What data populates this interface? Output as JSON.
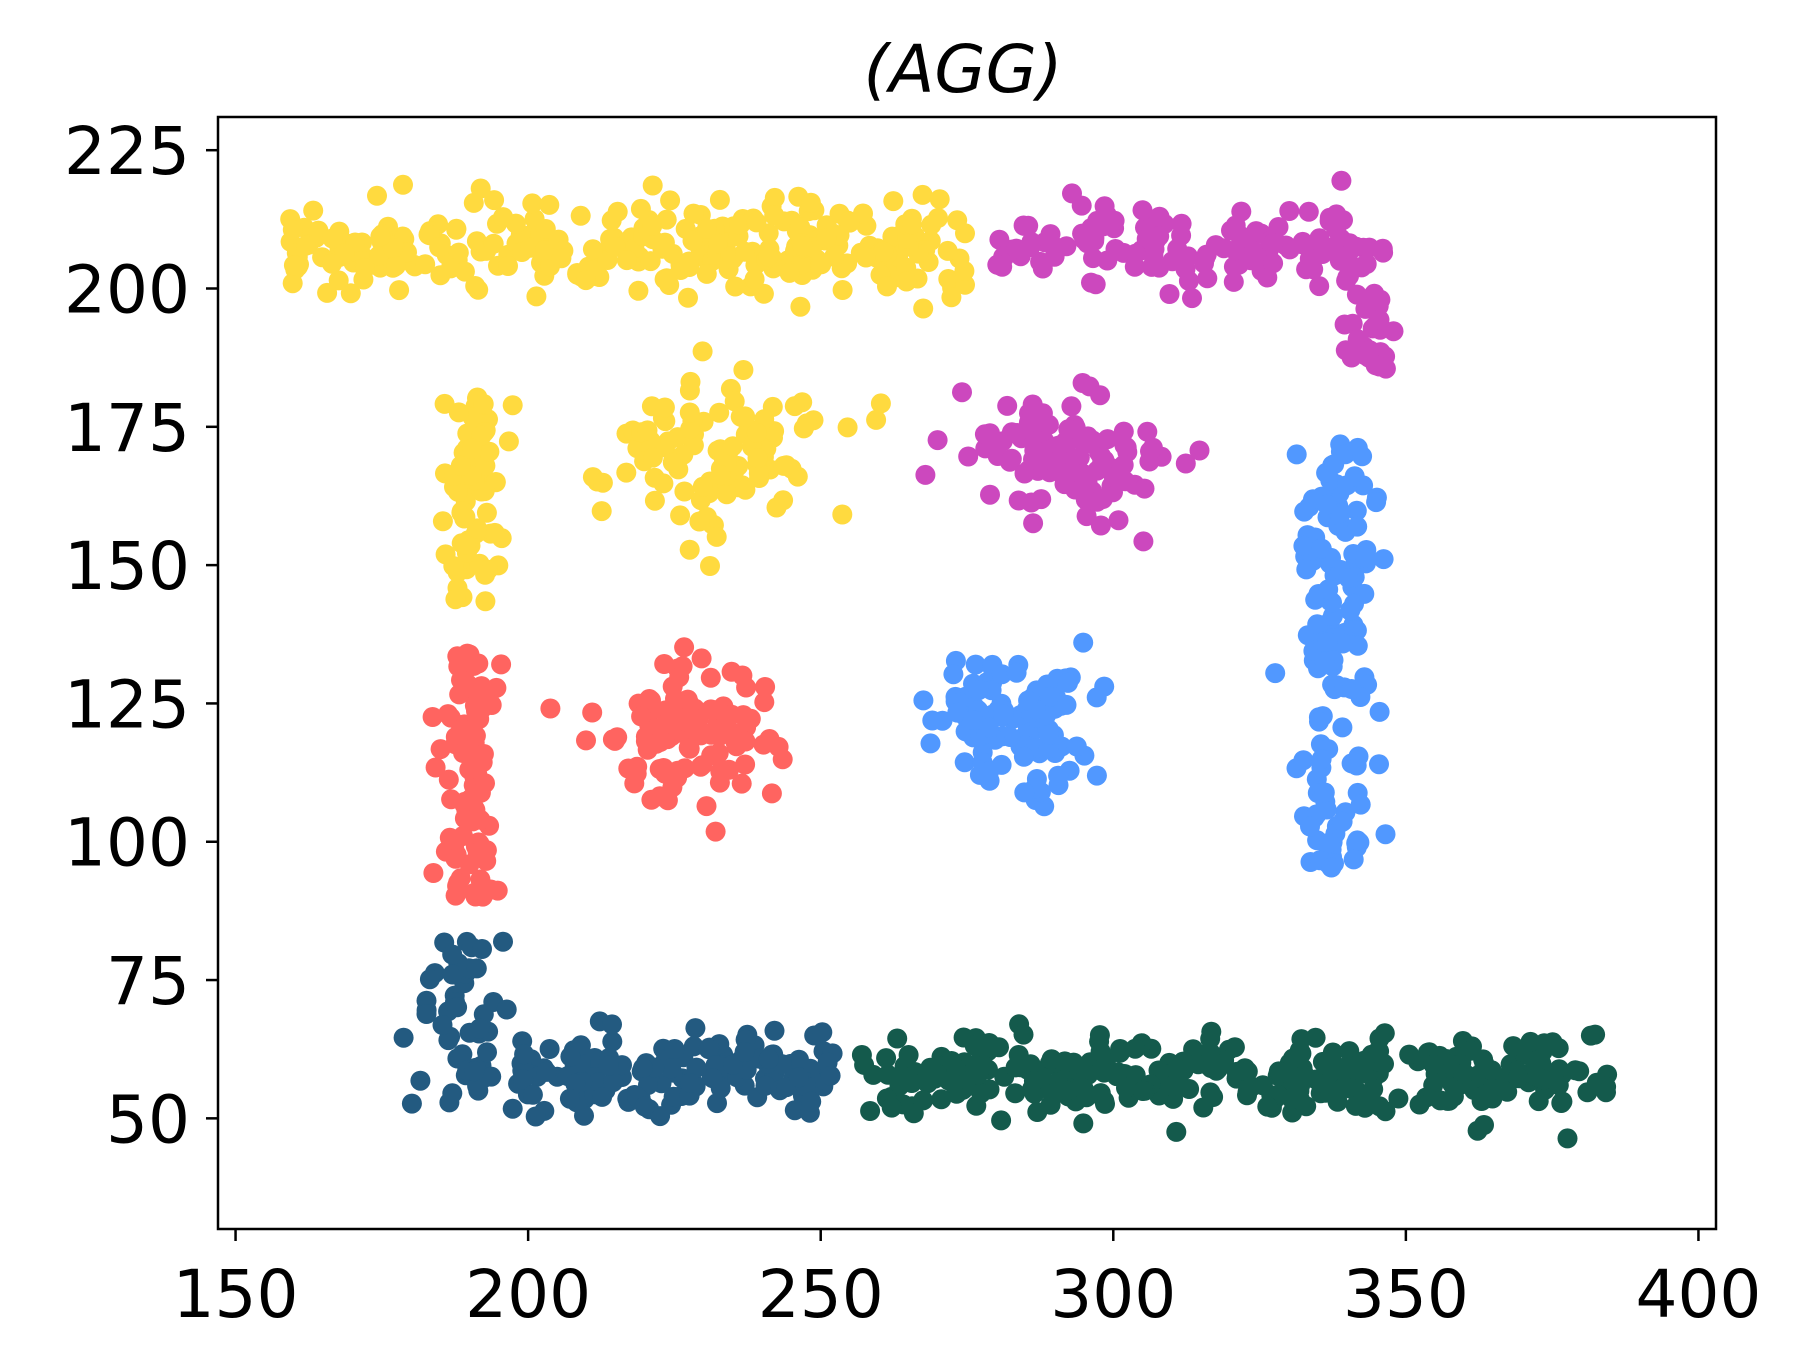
{
  "chart_data": {
    "type": "scatter",
    "title": "(AGG)",
    "xlabel": "",
    "ylabel": "",
    "xlim": [
      147,
      403
    ],
    "ylim": [
      30,
      231
    ],
    "x_ticks": [
      150,
      200,
      250,
      300,
      350,
      400
    ],
    "y_ticks": [
      50,
      75,
      100,
      125,
      150,
      175,
      200,
      225
    ],
    "grid": false,
    "legend": "none",
    "series": [
      {
        "color": "#FFDA3F",
        "clusters": [
          {
            "shape": "band",
            "cx": 217,
            "cy": 207,
            "sx": 34,
            "sy": 5,
            "n": 300
          },
          {
            "shape": "band",
            "cx": 190,
            "cy": 162,
            "sx": 3,
            "sy": 11,
            "n": 70
          },
          {
            "shape": "blob",
            "cx": 233,
            "cy": 170,
            "sx": 9,
            "sy": 7,
            "n": 110
          }
        ]
      },
      {
        "color": "#CC48BE",
        "clusters": [
          {
            "shape": "band",
            "cx": 310,
            "cy": 208,
            "sx": 18,
            "sy": 4,
            "n": 130
          },
          {
            "shape": "band",
            "cx": 343,
            "cy": 196,
            "sx": 3,
            "sy": 7,
            "n": 40
          },
          {
            "shape": "blob",
            "cx": 292,
            "cy": 169,
            "sx": 8,
            "sy": 6,
            "n": 110
          }
        ]
      },
      {
        "color": "#FF6460",
        "clusters": [
          {
            "shape": "band",
            "cx": 190,
            "cy": 112,
            "sx": 3,
            "sy": 13,
            "n": 90
          },
          {
            "shape": "blob",
            "cx": 228,
            "cy": 121,
            "sx": 8,
            "sy": 6,
            "n": 110
          }
        ]
      },
      {
        "color": "#5198FF",
        "clusters": [
          {
            "shape": "band",
            "cx": 338,
            "cy": 134,
            "sx": 4,
            "sy": 23,
            "n": 140
          },
          {
            "shape": "blob",
            "cx": 283,
            "cy": 120,
            "sx": 8,
            "sy": 7,
            "n": 110
          }
        ]
      },
      {
        "color": "#235A80",
        "clusters": [
          {
            "shape": "band",
            "cx": 225,
            "cy": 58,
            "sx": 16,
            "sy": 4,
            "n": 150
          },
          {
            "shape": "band",
            "cx": 189,
            "cy": 67,
            "sx": 5,
            "sy": 9,
            "n": 50
          }
        ]
      },
      {
        "color": "#145A4C",
        "clusters": [
          {
            "shape": "band",
            "cx": 320,
            "cy": 58,
            "sx": 38,
            "sy": 4,
            "n": 330
          }
        ]
      }
    ]
  }
}
